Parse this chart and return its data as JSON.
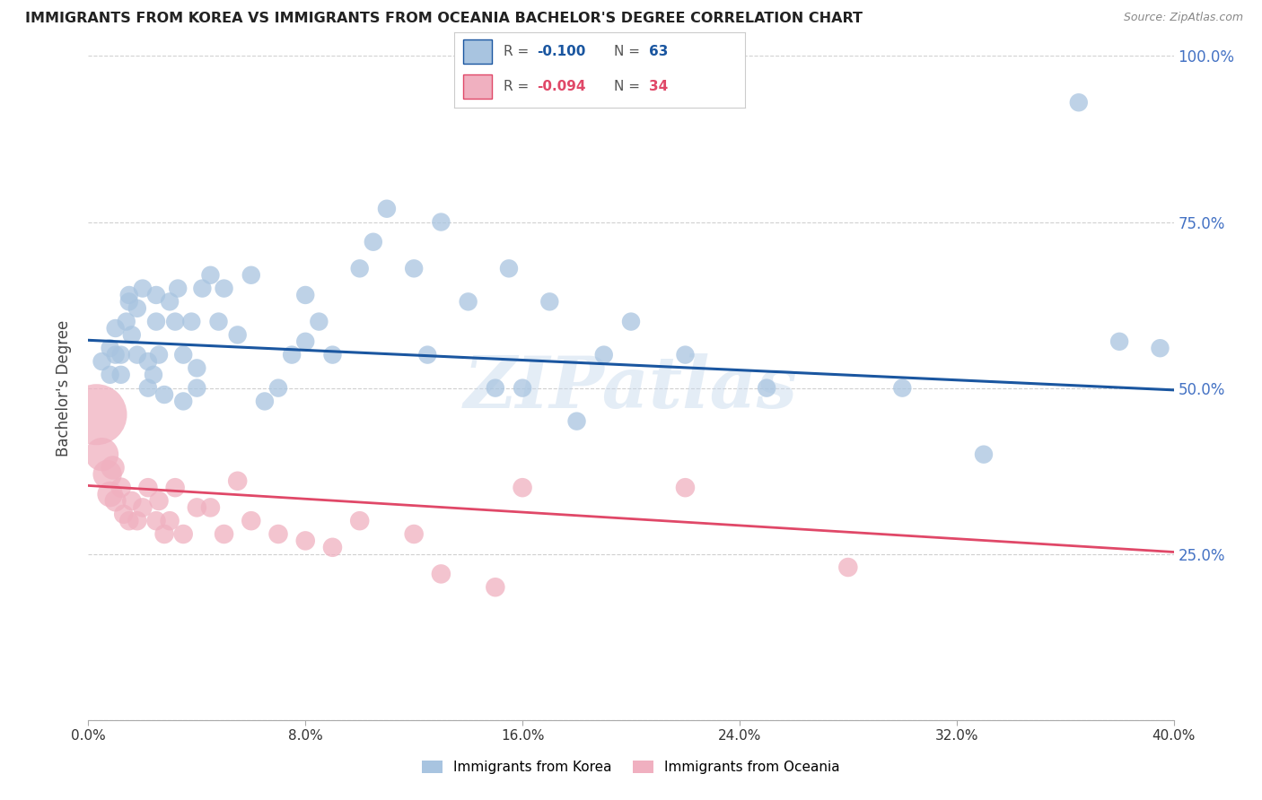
{
  "title": "IMMIGRANTS FROM KOREA VS IMMIGRANTS FROM OCEANIA BACHELOR'S DEGREE CORRELATION CHART",
  "source": "Source: ZipAtlas.com",
  "ylabel": "Bachelor's Degree",
  "watermark": "ZIPatlas",
  "legend_korea": "Immigrants from Korea",
  "legend_oceania": "Immigrants from Oceania",
  "r_korea": -0.1,
  "n_korea": 63,
  "r_oceania": -0.094,
  "n_oceania": 34,
  "color_korea": "#a8c4e0",
  "color_korea_line": "#1a56a0",
  "color_oceania": "#f0b0c0",
  "color_oceania_line": "#e04868",
  "xlim": [
    0.0,
    0.4
  ],
  "ylim": [
    0.0,
    1.0
  ],
  "yticks": [
    0.25,
    0.5,
    0.75,
    1.0
  ],
  "xticks": [
    0.0,
    0.08,
    0.16,
    0.24,
    0.32,
    0.4
  ],
  "background": "#ffffff",
  "korea_x": [
    0.005,
    0.008,
    0.008,
    0.01,
    0.01,
    0.012,
    0.012,
    0.014,
    0.015,
    0.015,
    0.016,
    0.018,
    0.018,
    0.02,
    0.022,
    0.022,
    0.024,
    0.025,
    0.025,
    0.026,
    0.028,
    0.03,
    0.032,
    0.033,
    0.035,
    0.035,
    0.038,
    0.04,
    0.04,
    0.042,
    0.045,
    0.048,
    0.05,
    0.055,
    0.06,
    0.065,
    0.07,
    0.075,
    0.08,
    0.08,
    0.085,
    0.09,
    0.1,
    0.105,
    0.11,
    0.12,
    0.125,
    0.13,
    0.14,
    0.15,
    0.155,
    0.16,
    0.17,
    0.18,
    0.19,
    0.2,
    0.22,
    0.25,
    0.3,
    0.33,
    0.365,
    0.38,
    0.395
  ],
  "korea_y": [
    0.54,
    0.52,
    0.56,
    0.55,
    0.59,
    0.52,
    0.55,
    0.6,
    0.63,
    0.64,
    0.58,
    0.55,
    0.62,
    0.65,
    0.5,
    0.54,
    0.52,
    0.6,
    0.64,
    0.55,
    0.49,
    0.63,
    0.6,
    0.65,
    0.48,
    0.55,
    0.6,
    0.5,
    0.53,
    0.65,
    0.67,
    0.6,
    0.65,
    0.58,
    0.67,
    0.48,
    0.5,
    0.55,
    0.57,
    0.64,
    0.6,
    0.55,
    0.68,
    0.72,
    0.77,
    0.68,
    0.55,
    0.75,
    0.63,
    0.5,
    0.68,
    0.5,
    0.63,
    0.45,
    0.55,
    0.6,
    0.55,
    0.5,
    0.5,
    0.4,
    0.93,
    0.57,
    0.56
  ],
  "korea_size": [
    18,
    18,
    18,
    18,
    18,
    18,
    18,
    18,
    18,
    18,
    18,
    18,
    18,
    18,
    18,
    18,
    18,
    18,
    18,
    18,
    18,
    18,
    18,
    18,
    18,
    18,
    18,
    18,
    18,
    18,
    18,
    18,
    18,
    18,
    18,
    18,
    18,
    18,
    18,
    18,
    18,
    18,
    18,
    18,
    18,
    18,
    18,
    18,
    18,
    18,
    18,
    18,
    18,
    18,
    18,
    18,
    18,
    18,
    18,
    18,
    18,
    18,
    18
  ],
  "oceania_x": [
    0.003,
    0.005,
    0.007,
    0.008,
    0.009,
    0.01,
    0.012,
    0.013,
    0.015,
    0.016,
    0.018,
    0.02,
    0.022,
    0.025,
    0.026,
    0.028,
    0.03,
    0.032,
    0.035,
    0.04,
    0.045,
    0.05,
    0.055,
    0.06,
    0.07,
    0.08,
    0.09,
    0.1,
    0.12,
    0.13,
    0.15,
    0.16,
    0.22,
    0.28
  ],
  "oceania_y": [
    0.46,
    0.4,
    0.37,
    0.34,
    0.38,
    0.33,
    0.35,
    0.31,
    0.3,
    0.33,
    0.3,
    0.32,
    0.35,
    0.3,
    0.33,
    0.28,
    0.3,
    0.35,
    0.28,
    0.32,
    0.32,
    0.28,
    0.36,
    0.3,
    0.28,
    0.27,
    0.26,
    0.3,
    0.28,
    0.22,
    0.2,
    0.35,
    0.35,
    0.23
  ],
  "oceania_size": [
    200,
    60,
    45,
    35,
    30,
    25,
    22,
    20,
    20,
    20,
    20,
    20,
    20,
    20,
    20,
    20,
    20,
    20,
    20,
    20,
    20,
    20,
    20,
    20,
    20,
    20,
    20,
    20,
    20,
    20,
    20,
    20,
    20,
    20
  ],
  "korea_line_x0": 0.0,
  "korea_line_y0": 0.572,
  "korea_line_x1": 0.4,
  "korea_line_y1": 0.497,
  "oceania_line_x0": 0.0,
  "oceania_line_y0": 0.353,
  "oceania_line_x1": 0.4,
  "oceania_line_y1": 0.253
}
